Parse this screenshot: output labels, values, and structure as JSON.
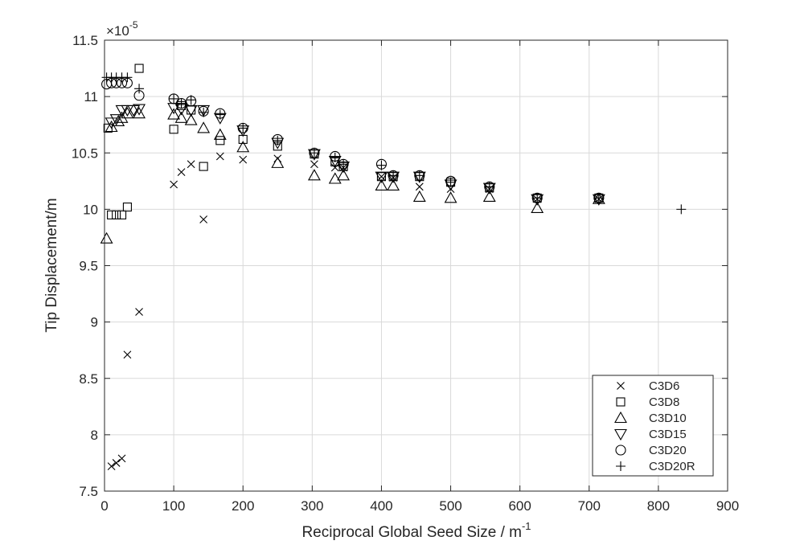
{
  "chart_data": {
    "type": "scatter",
    "xlabel": "Reciprocal Global Seed Size / m",
    "xlabel_sup": "-1",
    "ylabel": "Tip Displacement/m",
    "exponent_base": "×10",
    "exponent_power": "-5",
    "xlim": [
      0,
      900
    ],
    "ylim": [
      7.5,
      11.5
    ],
    "x_ticks": [
      "0",
      "100",
      "200",
      "300",
      "400",
      "500",
      "600",
      "700",
      "800",
      "900"
    ],
    "y_ticks": [
      "7.5",
      "8",
      "8.5",
      "9",
      "9.5",
      "10",
      "10.5",
      "11",
      "11.5"
    ],
    "grid": true,
    "legend_position": "bottom-right",
    "series": [
      {
        "name": "C3D6",
        "marker": "x",
        "x": [
          10,
          17,
          25,
          33,
          50,
          100,
          111,
          125,
          143,
          167,
          200,
          250,
          303,
          333,
          345,
          400,
          417,
          455,
          500,
          556,
          625,
          714
        ],
        "y": [
          7.72,
          7.75,
          7.79,
          8.71,
          9.09,
          10.22,
          10.33,
          10.4,
          9.91,
          10.47,
          10.44,
          10.45,
          10.4,
          10.37,
          10.37,
          10.29,
          10.28,
          10.2,
          10.18,
          10.18,
          10.09,
          10.09
        ]
      },
      {
        "name": "C3D8",
        "marker": "square",
        "x": [
          5,
          10,
          17,
          25,
          33,
          50,
          100,
          111,
          125,
          143,
          167,
          200,
          250,
          303,
          333,
          345,
          400,
          417,
          455,
          500,
          556,
          625,
          714
        ],
        "y": [
          10.72,
          9.95,
          9.95,
          9.95,
          10.02,
          11.25,
          10.71,
          10.92,
          10.88,
          10.38,
          10.61,
          10.62,
          10.56,
          10.49,
          10.42,
          10.38,
          10.29,
          10.29,
          10.29,
          10.24,
          10.19,
          10.1,
          10.1
        ]
      },
      {
        "name": "C3D10",
        "marker": "triangle-up",
        "x": [
          3,
          10,
          20,
          25,
          33,
          50,
          100,
          111,
          125,
          143,
          167,
          200,
          250,
          303,
          333,
          345,
          400,
          417,
          455,
          500,
          556,
          625,
          714
        ],
        "y": [
          9.74,
          10.73,
          10.78,
          10.81,
          10.85,
          10.85,
          10.84,
          10.81,
          10.79,
          10.72,
          10.66,
          10.55,
          10.41,
          10.3,
          10.27,
          10.3,
          10.21,
          10.21,
          10.11,
          10.1,
          10.11,
          10.01,
          10.09
        ]
      },
      {
        "name": "C3D15",
        "marker": "triangle-down",
        "x": [
          10,
          17,
          25,
          33,
          42,
          50,
          100,
          111,
          125,
          143,
          167,
          200,
          250,
          303,
          333,
          345,
          400,
          417,
          455,
          500,
          556,
          625,
          714
        ],
        "y": [
          10.77,
          10.8,
          10.88,
          10.88,
          10.88,
          10.89,
          10.9,
          10.89,
          10.88,
          10.88,
          10.81,
          10.7,
          10.59,
          10.49,
          10.43,
          10.38,
          10.29,
          10.29,
          10.29,
          10.22,
          10.19,
          10.09,
          10.09
        ]
      },
      {
        "name": "C3D20",
        "marker": "circle",
        "x": [
          3,
          10,
          17,
          25,
          33,
          50,
          100,
          111,
          125,
          143,
          167,
          200,
          250,
          303,
          333,
          345,
          400,
          417,
          455,
          500,
          556,
          625,
          714
        ],
        "y": [
          11.11,
          11.12,
          11.12,
          11.12,
          11.12,
          11.01,
          10.98,
          10.94,
          10.96,
          10.87,
          10.85,
          10.72,
          10.62,
          10.5,
          10.47,
          10.4,
          10.4,
          10.3,
          10.3,
          10.25,
          10.2,
          10.1,
          10.1
        ]
      },
      {
        "name": "C3D20R",
        "marker": "plus",
        "x": [
          3,
          10,
          17,
          25,
          33,
          50,
          100,
          111,
          125,
          143,
          167,
          200,
          250,
          303,
          333,
          345,
          400,
          417,
          455,
          500,
          556,
          625,
          714,
          833
        ],
        "y": [
          11.17,
          11.17,
          11.17,
          11.17,
          11.17,
          11.07,
          10.98,
          10.94,
          10.97,
          10.86,
          10.84,
          10.72,
          10.61,
          10.5,
          10.46,
          10.4,
          10.39,
          10.3,
          10.3,
          10.24,
          10.2,
          10.1,
          10.1,
          10.0
        ]
      }
    ]
  }
}
